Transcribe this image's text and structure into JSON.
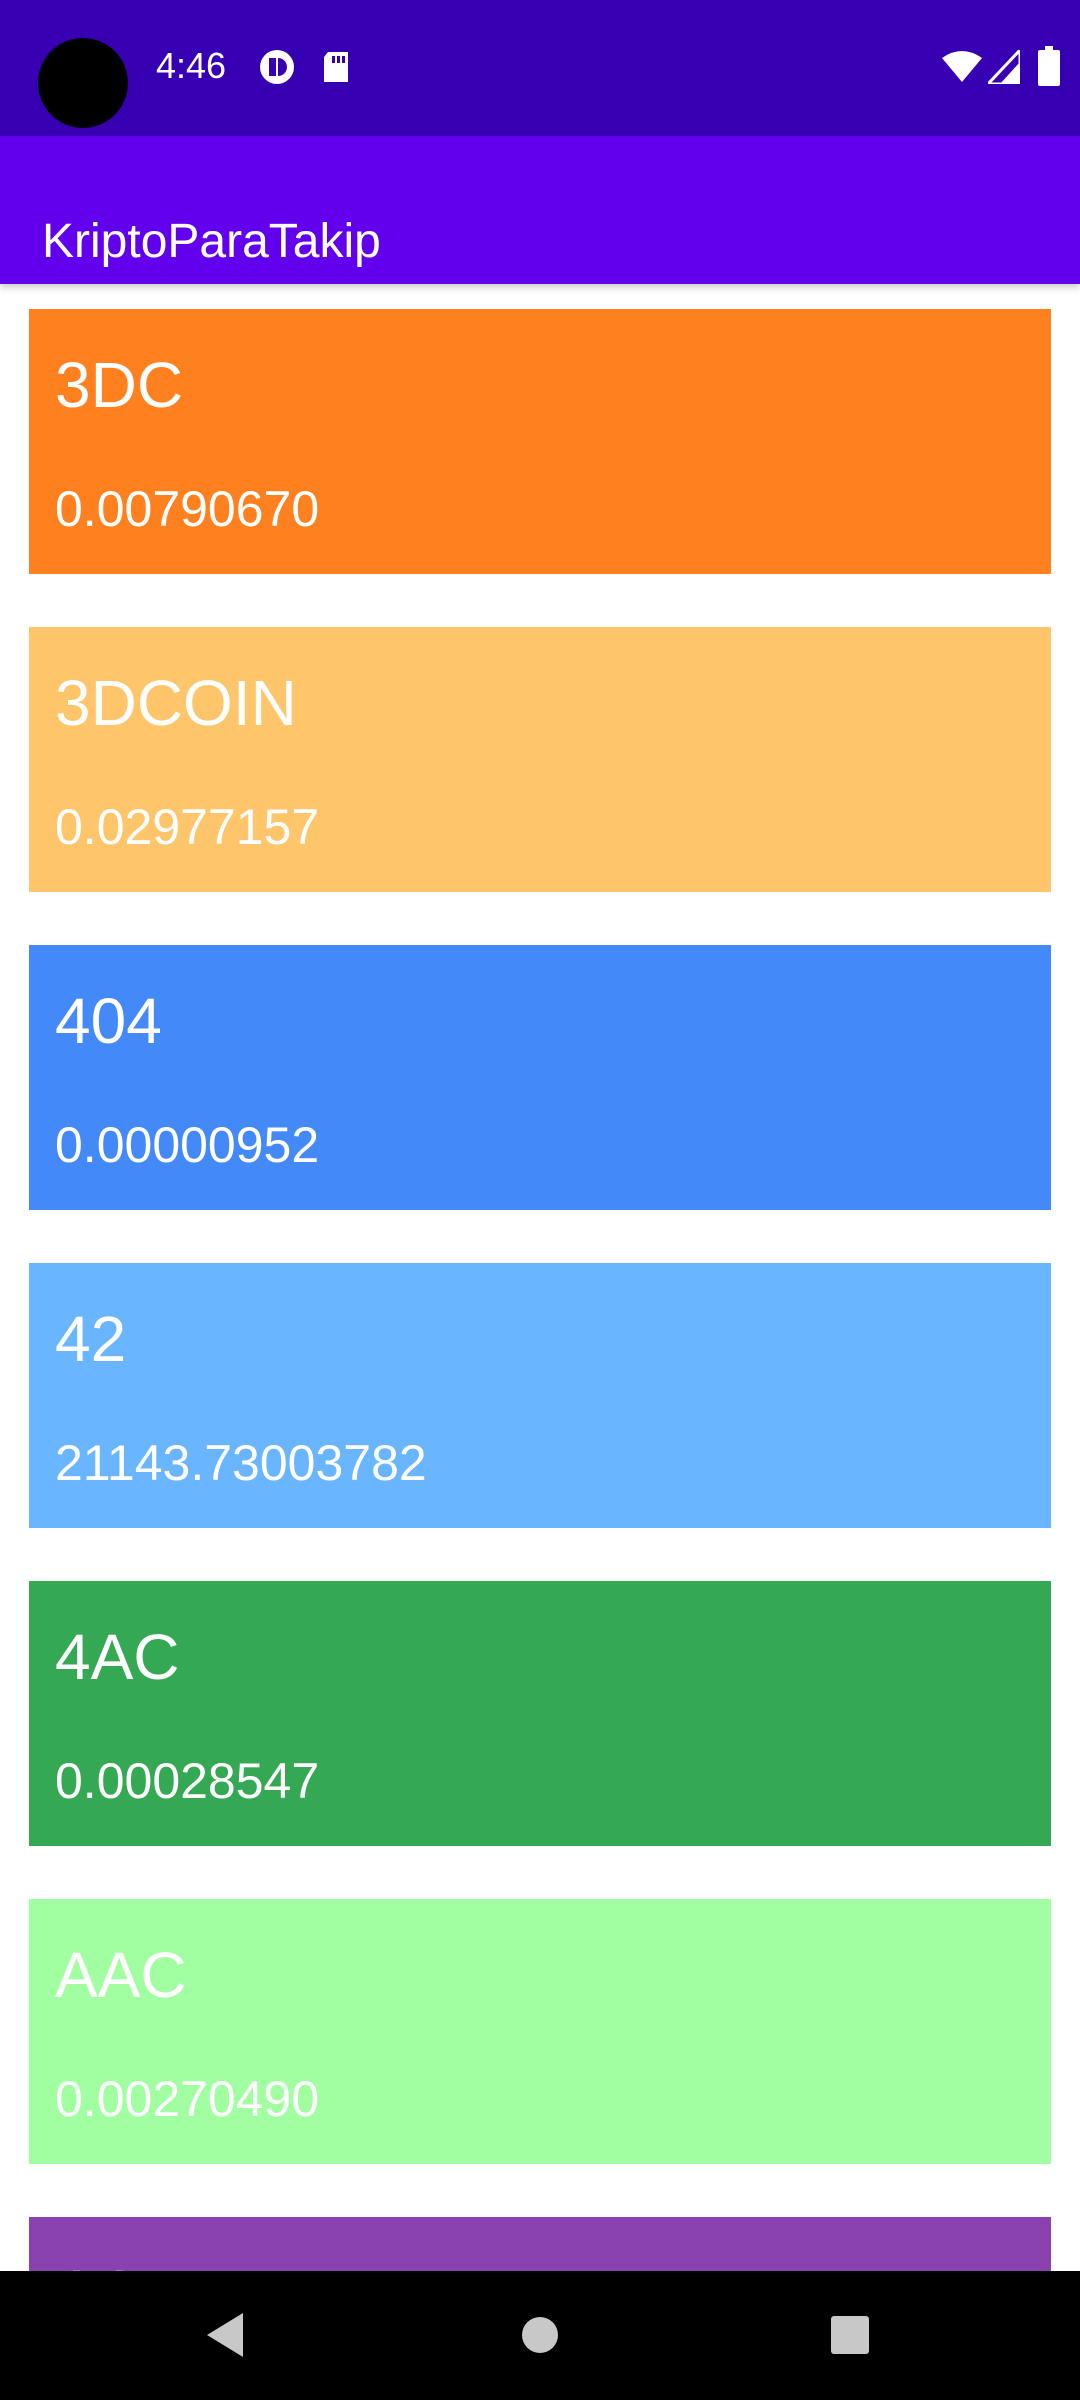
{
  "status_bar": {
    "time": "4:46",
    "icons": [
      "vpn-key-icon",
      "sd-card-icon",
      "wifi-icon",
      "signal-icon",
      "battery-icon"
    ],
    "background": "#3700b3"
  },
  "app_bar": {
    "title": "KriptoParaTakip",
    "background": "#6200ee"
  },
  "coins": [
    {
      "name": "3DC",
      "price": "0.00790670",
      "color": "#ff801e"
    },
    {
      "name": "3DCOIN",
      "price": "0.02977157",
      "color": "#ffc56a"
    },
    {
      "name": "404",
      "price": "0.00000952",
      "color": "#4489f8"
    },
    {
      "name": "42",
      "price": "21143.73003782",
      "color": "#69b5ff"
    },
    {
      "name": "4AC",
      "price": "0.00028547",
      "color": "#35a853"
    },
    {
      "name": "AAC",
      "price": "0.00270490",
      "color": "#a1ffa1"
    },
    {
      "name": "AAT",
      "price": "",
      "color": "#8a42b0"
    }
  ],
  "nav_bar": {
    "buttons": [
      "back-icon",
      "home-icon",
      "recents-icon"
    ]
  }
}
